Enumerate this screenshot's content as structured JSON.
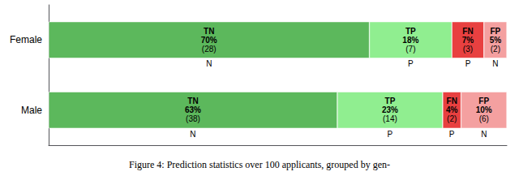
{
  "chart_data": {
    "type": "bar",
    "orientation": "horizontal",
    "stacked": true,
    "title": "Figure 4: Prediction statistics over 100 applicants, grouped by gen-",
    "categories": [
      "Female",
      "Male"
    ],
    "series": [
      {
        "name": "TN",
        "color": "#5cb85c",
        "values": [
          70,
          63
        ],
        "value_labels": [
          "70%",
          "63%"
        ],
        "count_labels": [
          "(28)",
          "(38)"
        ],
        "pred_labels": [
          "N",
          "N"
        ]
      },
      {
        "name": "TP",
        "color": "#90ee90",
        "values": [
          18,
          23
        ],
        "value_labels": [
          "18%",
          "23%"
        ],
        "count_labels": [
          "(7)",
          "(14)"
        ],
        "pred_labels": [
          "P",
          "P"
        ]
      },
      {
        "name": "FN",
        "color": "#e84040",
        "values": [
          7,
          4
        ],
        "value_labels": [
          "7%",
          "4%"
        ],
        "count_labels": [
          "(3)",
          "(2)"
        ],
        "pred_labels": [
          "P",
          "P"
        ]
      },
      {
        "name": "FP",
        "color": "#f4a0a0",
        "values": [
          5,
          10
        ],
        "value_labels": [
          "5%",
          "10%"
        ],
        "count_labels": [
          "(2)",
          "(6)"
        ],
        "pred_labels": [
          "N",
          "N"
        ]
      }
    ],
    "xlim": [
      0,
      100
    ],
    "grid": false,
    "tick_labels": "y",
    "data_labels": true
  }
}
